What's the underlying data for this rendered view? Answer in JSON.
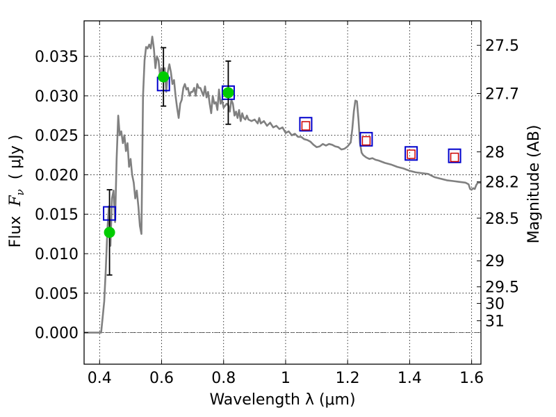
{
  "chart_data": {
    "type": "line",
    "xlabel": "Wavelength  λ (μm)",
    "ylabel_prefix": "Flux  ",
    "ylabel_italic": "F",
    "ylabel_sub": "ν",
    "ylabel_suffix": "  ( μJy )",
    "ylabel_right": "Magnitude (AB)",
    "xlim": [
      0.35,
      1.63
    ],
    "ylim": [
      -0.004,
      0.0395
    ],
    "x_ticks": [
      0.4,
      0.6,
      0.8,
      1.0,
      1.2,
      1.4,
      1.6
    ],
    "x_tick_labels": [
      "0.4",
      "0.6",
      "0.8",
      "1",
      "1.2",
      "1.4",
      "1.6"
    ],
    "y_ticks": [
      0.0,
      0.005,
      0.01,
      0.015,
      0.02,
      0.025,
      0.03,
      0.035
    ],
    "y_tick_labels": [
      "0.000",
      "0.005",
      "0.010",
      "0.015",
      "0.020",
      "0.025",
      "0.030",
      "0.035"
    ],
    "right_ticks": [
      {
        "flux": 0.0364,
        "label": "27.5"
      },
      {
        "flux": 0.0303,
        "label": "27.7"
      },
      {
        "flux": 0.0229,
        "label": "28"
      },
      {
        "flux": 0.0191,
        "label": "28.2"
      },
      {
        "flux": 0.0145,
        "label": "28.5"
      },
      {
        "flux": 0.0091,
        "label": "29"
      },
      {
        "flux": 0.0058,
        "label": "29.5"
      },
      {
        "flux": 0.0037,
        "label": "30"
      },
      {
        "flux": 0.0015,
        "label": "31"
      }
    ],
    "grid": true,
    "zero_line": 0.0,
    "series": [
      {
        "kind": "spectrum",
        "color": "#808080",
        "points": [
          [
            0.35,
            0.0
          ],
          [
            0.4,
            0.0
          ],
          [
            0.405,
            0.0
          ],
          [
            0.41,
            0.002
          ],
          [
            0.415,
            0.004
          ],
          [
            0.42,
            0.008
          ],
          [
            0.425,
            0.013
          ],
          [
            0.43,
            0.016
          ],
          [
            0.435,
            0.011
          ],
          [
            0.44,
            0.017
          ],
          [
            0.445,
            0.018
          ],
          [
            0.45,
            0.014
          ],
          [
            0.455,
            0.022
          ],
          [
            0.46,
            0.0275
          ],
          [
            0.465,
            0.025
          ],
          [
            0.47,
            0.0255
          ],
          [
            0.475,
            0.024
          ],
          [
            0.48,
            0.025
          ],
          [
            0.485,
            0.023
          ],
          [
            0.49,
            0.024
          ],
          [
            0.495,
            0.021
          ],
          [
            0.5,
            0.022
          ],
          [
            0.505,
            0.02
          ],
          [
            0.51,
            0.019
          ],
          [
            0.515,
            0.017
          ],
          [
            0.52,
            0.018
          ],
          [
            0.525,
            0.016
          ],
          [
            0.53,
            0.0135
          ],
          [
            0.535,
            0.0125
          ],
          [
            0.54,
            0.03
          ],
          [
            0.545,
            0.0345
          ],
          [
            0.55,
            0.0362
          ],
          [
            0.555,
            0.036
          ],
          [
            0.56,
            0.0365
          ],
          [
            0.565,
            0.036
          ],
          [
            0.57,
            0.0375
          ],
          [
            0.575,
            0.036
          ],
          [
            0.58,
            0.0335
          ],
          [
            0.585,
            0.035
          ],
          [
            0.59,
            0.0345
          ],
          [
            0.595,
            0.0325
          ],
          [
            0.6,
            0.0335
          ],
          [
            0.605,
            0.033
          ],
          [
            0.61,
            0.0335
          ],
          [
            0.615,
            0.0305
          ],
          [
            0.62,
            0.033
          ],
          [
            0.625,
            0.034
          ],
          [
            0.63,
            0.033
          ],
          [
            0.635,
            0.0315
          ],
          [
            0.64,
            0.032
          ],
          [
            0.645,
            0.03
          ],
          [
            0.65,
            0.0285
          ],
          [
            0.655,
            0.0272
          ],
          [
            0.66,
            0.029
          ],
          [
            0.665,
            0.0295
          ],
          [
            0.67,
            0.031
          ],
          [
            0.675,
            0.0315
          ],
          [
            0.68,
            0.0308
          ],
          [
            0.685,
            0.031
          ],
          [
            0.69,
            0.03
          ],
          [
            0.695,
            0.0305
          ],
          [
            0.7,
            0.0305
          ],
          [
            0.705,
            0.031
          ],
          [
            0.71,
            0.03
          ],
          [
            0.715,
            0.0315
          ],
          [
            0.72,
            0.031
          ],
          [
            0.725,
            0.031
          ],
          [
            0.73,
            0.0305
          ],
          [
            0.735,
            0.03
          ],
          [
            0.74,
            0.0312
          ],
          [
            0.745,
            0.0298
          ],
          [
            0.75,
            0.0305
          ],
          [
            0.755,
            0.029
          ],
          [
            0.76,
            0.0278
          ],
          [
            0.765,
            0.03
          ],
          [
            0.77,
            0.029
          ],
          [
            0.775,
            0.0292
          ],
          [
            0.78,
            0.0282
          ],
          [
            0.785,
            0.0308
          ],
          [
            0.79,
            0.029
          ],
          [
            0.795,
            0.0295
          ],
          [
            0.8,
            0.0285
          ],
          [
            0.81,
            0.029
          ],
          [
            0.815,
            0.0288
          ],
          [
            0.82,
            0.028
          ],
          [
            0.825,
            0.0295
          ],
          [
            0.83,
            0.029
          ],
          [
            0.835,
            0.0275
          ],
          [
            0.84,
            0.028
          ],
          [
            0.845,
            0.0272
          ],
          [
            0.85,
            0.0282
          ],
          [
            0.855,
            0.0268
          ],
          [
            0.86,
            0.0278
          ],
          [
            0.865,
            0.0272
          ],
          [
            0.87,
            0.027
          ],
          [
            0.875,
            0.0275
          ],
          [
            0.88,
            0.027
          ],
          [
            0.89,
            0.0268
          ],
          [
            0.9,
            0.027
          ],
          [
            0.91,
            0.0265
          ],
          [
            0.915,
            0.0272
          ],
          [
            0.92,
            0.0265
          ],
          [
            0.93,
            0.0268
          ],
          [
            0.94,
            0.0262
          ],
          [
            0.95,
            0.0266
          ],
          [
            0.96,
            0.026
          ],
          [
            0.97,
            0.0262
          ],
          [
            0.98,
            0.0258
          ],
          [
            0.99,
            0.026
          ],
          [
            1.0,
            0.0253
          ],
          [
            1.01,
            0.0255
          ],
          [
            1.02,
            0.025
          ],
          [
            1.03,
            0.0252
          ],
          [
            1.04,
            0.0248
          ],
          [
            1.05,
            0.0248
          ],
          [
            1.06,
            0.0245
          ],
          [
            1.07,
            0.0244
          ],
          [
            1.08,
            0.0242
          ],
          [
            1.09,
            0.0238
          ],
          [
            1.1,
            0.0235
          ],
          [
            1.11,
            0.0236
          ],
          [
            1.12,
            0.0239
          ],
          [
            1.13,
            0.0237
          ],
          [
            1.14,
            0.0239
          ],
          [
            1.15,
            0.0238
          ],
          [
            1.16,
            0.0236
          ],
          [
            1.17,
            0.0235
          ],
          [
            1.18,
            0.0232
          ],
          [
            1.19,
            0.0233
          ],
          [
            1.2,
            0.0236
          ],
          [
            1.21,
            0.0241
          ],
          [
            1.215,
            0.0258
          ],
          [
            1.22,
            0.028
          ],
          [
            1.225,
            0.0294
          ],
          [
            1.23,
            0.0293
          ],
          [
            1.235,
            0.027
          ],
          [
            1.24,
            0.024
          ],
          [
            1.245,
            0.0228
          ],
          [
            1.25,
            0.0225
          ],
          [
            1.26,
            0.0222
          ],
          [
            1.27,
            0.022
          ],
          [
            1.28,
            0.0221
          ],
          [
            1.29,
            0.0219
          ],
          [
            1.3,
            0.0218
          ],
          [
            1.32,
            0.0215
          ],
          [
            1.34,
            0.0213
          ],
          [
            1.36,
            0.021
          ],
          [
            1.38,
            0.0208
          ],
          [
            1.4,
            0.0205
          ],
          [
            1.42,
            0.0203
          ],
          [
            1.44,
            0.0202
          ],
          [
            1.46,
            0.0201
          ],
          [
            1.47,
            0.0199
          ],
          [
            1.48,
            0.0197
          ],
          [
            1.5,
            0.0195
          ],
          [
            1.52,
            0.0193
          ],
          [
            1.54,
            0.0192
          ],
          [
            1.56,
            0.0191
          ],
          [
            1.58,
            0.019
          ],
          [
            1.59,
            0.0188
          ],
          [
            1.595,
            0.0182
          ],
          [
            1.6,
            0.0181
          ],
          [
            1.605,
            0.0183
          ],
          [
            1.61,
            0.0182
          ],
          [
            1.615,
            0.0187
          ],
          [
            1.62,
            0.019
          ],
          [
            1.63,
            0.019
          ]
        ]
      },
      {
        "kind": "model_photometry",
        "color": "#0000cc",
        "x": [
          0.432,
          0.606,
          0.815,
          1.065,
          1.26,
          1.405,
          1.545
        ],
        "y": [
          0.0151,
          0.0315,
          0.0304,
          0.0264,
          0.0245,
          0.0227,
          0.0224
        ]
      },
      {
        "kind": "photometry_upper",
        "color": "#cc0000",
        "x": [
          1.065,
          1.26,
          1.405,
          1.545
        ],
        "y": [
          0.0262,
          0.0243,
          0.0226,
          0.0222
        ]
      },
      {
        "kind": "observed",
        "color": "#00cc00",
        "x": [
          0.432,
          0.606,
          0.815
        ],
        "y": [
          0.0127,
          0.0324,
          0.0304
        ],
        "yerr_low": [
          0.0054,
          0.0037,
          0.004
        ],
        "yerr_high": [
          0.0054,
          0.0037,
          0.004
        ]
      }
    ]
  }
}
